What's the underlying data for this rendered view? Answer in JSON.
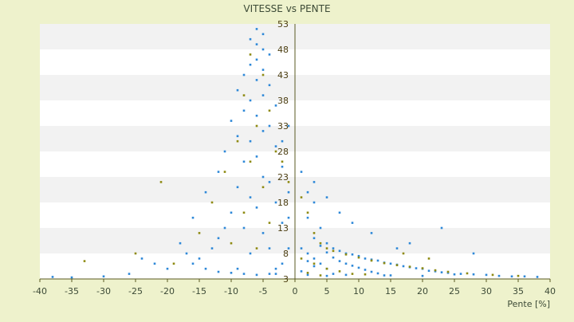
{
  "chart_data": {
    "type": "scatter",
    "title": "VITESSE vs PENTE",
    "xlabel": "Pente [%]",
    "ylabel": "",
    "xlim": [
      -40,
      40
    ],
    "ylim": [
      3,
      53
    ],
    "xticks": [
      -40,
      -35,
      -30,
      -25,
      -20,
      -15,
      -10,
      -5,
      0,
      5,
      10,
      15,
      20,
      25,
      30,
      35,
      40
    ],
    "yticks": [
      3,
      8,
      13,
      18,
      23,
      28,
      33,
      38,
      43,
      48,
      53
    ],
    "grid": "horizontal bands",
    "legend": "none",
    "colors": {
      "primary_series": "#2e88d8",
      "secondary_series": "#8e8a12",
      "axis": "#5a5a22",
      "band": "#f2f2f2",
      "background": "#eef2cc"
    },
    "series": [
      {
        "color": "#2e88d8",
        "points": [
          [
            -6,
            52
          ],
          [
            -5,
            51
          ],
          [
            -7,
            50
          ],
          [
            -6,
            49
          ],
          [
            -5,
            48
          ],
          [
            -4,
            47
          ],
          [
            -6,
            46
          ],
          [
            -7,
            45
          ],
          [
            -5,
            44
          ],
          [
            -8,
            43
          ],
          [
            -6,
            42
          ],
          [
            -4,
            41
          ],
          [
            -9,
            40
          ],
          [
            -5,
            39
          ],
          [
            -7,
            38
          ],
          [
            -3,
            37
          ],
          [
            -8,
            36
          ],
          [
            -6,
            35
          ],
          [
            -10,
            34
          ],
          [
            -4,
            33
          ],
          [
            -5,
            32
          ],
          [
            -9,
            31
          ],
          [
            -7,
            30
          ],
          [
            -3,
            29
          ],
          [
            -11,
            28
          ],
          [
            -6,
            27
          ],
          [
            -8,
            26
          ],
          [
            -2,
            25
          ],
          [
            -12,
            24
          ],
          [
            -5,
            23
          ],
          [
            -4,
            22
          ],
          [
            -9,
            21
          ],
          [
            -14,
            20
          ],
          [
            -7,
            19
          ],
          [
            -3,
            18
          ],
          [
            -6,
            17
          ],
          [
            -10,
            16
          ],
          [
            -16,
            15
          ],
          [
            -2,
            14
          ],
          [
            -8,
            13
          ],
          [
            -5,
            12
          ],
          [
            -12,
            11
          ],
          [
            -18,
            10
          ],
          [
            -4,
            9
          ],
          [
            -7,
            8
          ],
          [
            -15,
            7
          ],
          [
            -22,
            6
          ],
          [
            -9,
            5
          ],
          [
            -3,
            4
          ],
          [
            -26,
            4
          ],
          [
            -30,
            3.5
          ],
          [
            -35,
            3.3
          ],
          [
            -38,
            3.4
          ],
          [
            -20,
            5
          ],
          [
            -24,
            7
          ],
          [
            -13,
            9
          ],
          [
            -11,
            13
          ],
          [
            -1,
            20
          ],
          [
            -2,
            30
          ],
          [
            -1,
            33
          ],
          [
            1,
            24
          ],
          [
            2,
            20
          ],
          [
            3,
            18
          ],
          [
            2,
            15
          ],
          [
            4,
            13
          ],
          [
            3,
            11
          ],
          [
            5,
            10
          ],
          [
            6,
            9
          ],
          [
            4,
            9.5
          ],
          [
            7,
            8.5
          ],
          [
            8,
            8
          ],
          [
            5,
            8.2
          ],
          [
            9,
            7.8
          ],
          [
            10,
            7.5
          ],
          [
            6,
            7.2
          ],
          [
            11,
            7
          ],
          [
            12,
            6.8
          ],
          [
            7,
            6.5
          ],
          [
            13,
            6.6
          ],
          [
            14,
            6.2
          ],
          [
            8,
            6
          ],
          [
            15,
            6
          ],
          [
            16,
            5.8
          ],
          [
            9,
            5.6
          ],
          [
            17,
            5.5
          ],
          [
            18,
            5.3
          ],
          [
            10,
            5.2
          ],
          [
            19,
            5.1
          ],
          [
            20,
            5
          ],
          [
            11,
            4.8
          ],
          [
            21,
            4.6
          ],
          [
            22,
            4.5
          ],
          [
            12,
            4.4
          ],
          [
            23,
            4.3
          ],
          [
            24,
            4.2
          ],
          [
            13,
            4.1
          ],
          [
            26,
            4
          ],
          [
            28,
            3.9
          ],
          [
            30,
            3.8
          ],
          [
            14,
            3.7
          ],
          [
            32,
            3.6
          ],
          [
            34,
            3.5
          ],
          [
            36,
            3.5
          ],
          [
            38,
            3.4
          ],
          [
            2,
            8
          ],
          [
            3,
            7
          ],
          [
            4,
            6
          ],
          [
            5,
            5
          ],
          [
            6,
            4
          ],
          [
            3,
            5.5
          ],
          [
            1,
            9
          ],
          [
            2,
            6.5
          ],
          [
            1,
            4.5
          ],
          [
            2,
            3.8
          ],
          [
            5,
            3.6
          ],
          [
            8,
            3.8
          ],
          [
            15,
            3.7
          ],
          [
            20,
            3.6
          ],
          [
            25,
            3.9
          ],
          [
            28,
            8
          ],
          [
            23,
            13
          ],
          [
            18,
            10
          ],
          [
            16,
            9
          ],
          [
            12,
            12
          ],
          [
            9,
            14
          ],
          [
            7,
            16
          ],
          [
            5,
            19
          ],
          [
            3,
            22
          ],
          [
            -1,
            15
          ],
          [
            -1,
            9
          ],
          [
            -2,
            6
          ],
          [
            -3,
            5
          ],
          [
            -4,
            4
          ],
          [
            -6,
            3.8
          ],
          [
            -8,
            4
          ],
          [
            -10,
            4.2
          ],
          [
            -12,
            4.4
          ],
          [
            -14,
            5
          ],
          [
            -16,
            6
          ],
          [
            -17,
            8
          ]
        ]
      },
      {
        "color": "#8e8a12",
        "points": [
          [
            -7,
            47
          ],
          [
            -5,
            43
          ],
          [
            -8,
            39
          ],
          [
            -4,
            36
          ],
          [
            -6,
            33
          ],
          [
            -9,
            30
          ],
          [
            -3,
            28
          ],
          [
            -7,
            26
          ],
          [
            -11,
            24
          ],
          [
            -5,
            21
          ],
          [
            -21,
            22
          ],
          [
            -13,
            18
          ],
          [
            -8,
            16
          ],
          [
            -4,
            14
          ],
          [
            -15,
            12
          ],
          [
            -10,
            10
          ],
          [
            -6,
            9
          ],
          [
            -25,
            8
          ],
          [
            -33,
            6.5
          ],
          [
            -19,
            6
          ],
          [
            -2,
            26
          ],
          [
            -1,
            22
          ],
          [
            1,
            19
          ],
          [
            2,
            16
          ],
          [
            3,
            12
          ],
          [
            4,
            10
          ],
          [
            5,
            9
          ],
          [
            6,
            8.5
          ],
          [
            8,
            7.8
          ],
          [
            10,
            7.2
          ],
          [
            12,
            6.6
          ],
          [
            14,
            6.1
          ],
          [
            16,
            5.7
          ],
          [
            18,
            5.4
          ],
          [
            20,
            5.1
          ],
          [
            22,
            4.7
          ],
          [
            24,
            4.4
          ],
          [
            27,
            4.1
          ],
          [
            31,
            3.8
          ],
          [
            35,
            3.6
          ],
          [
            1,
            7
          ],
          [
            3,
            6
          ],
          [
            5,
            5
          ],
          [
            7,
            4.5
          ],
          [
            9,
            4
          ],
          [
            2,
            4.2
          ],
          [
            4,
            3.7
          ],
          [
            11,
            3.9
          ],
          [
            17,
            8
          ],
          [
            21,
            7
          ]
        ]
      }
    ]
  }
}
